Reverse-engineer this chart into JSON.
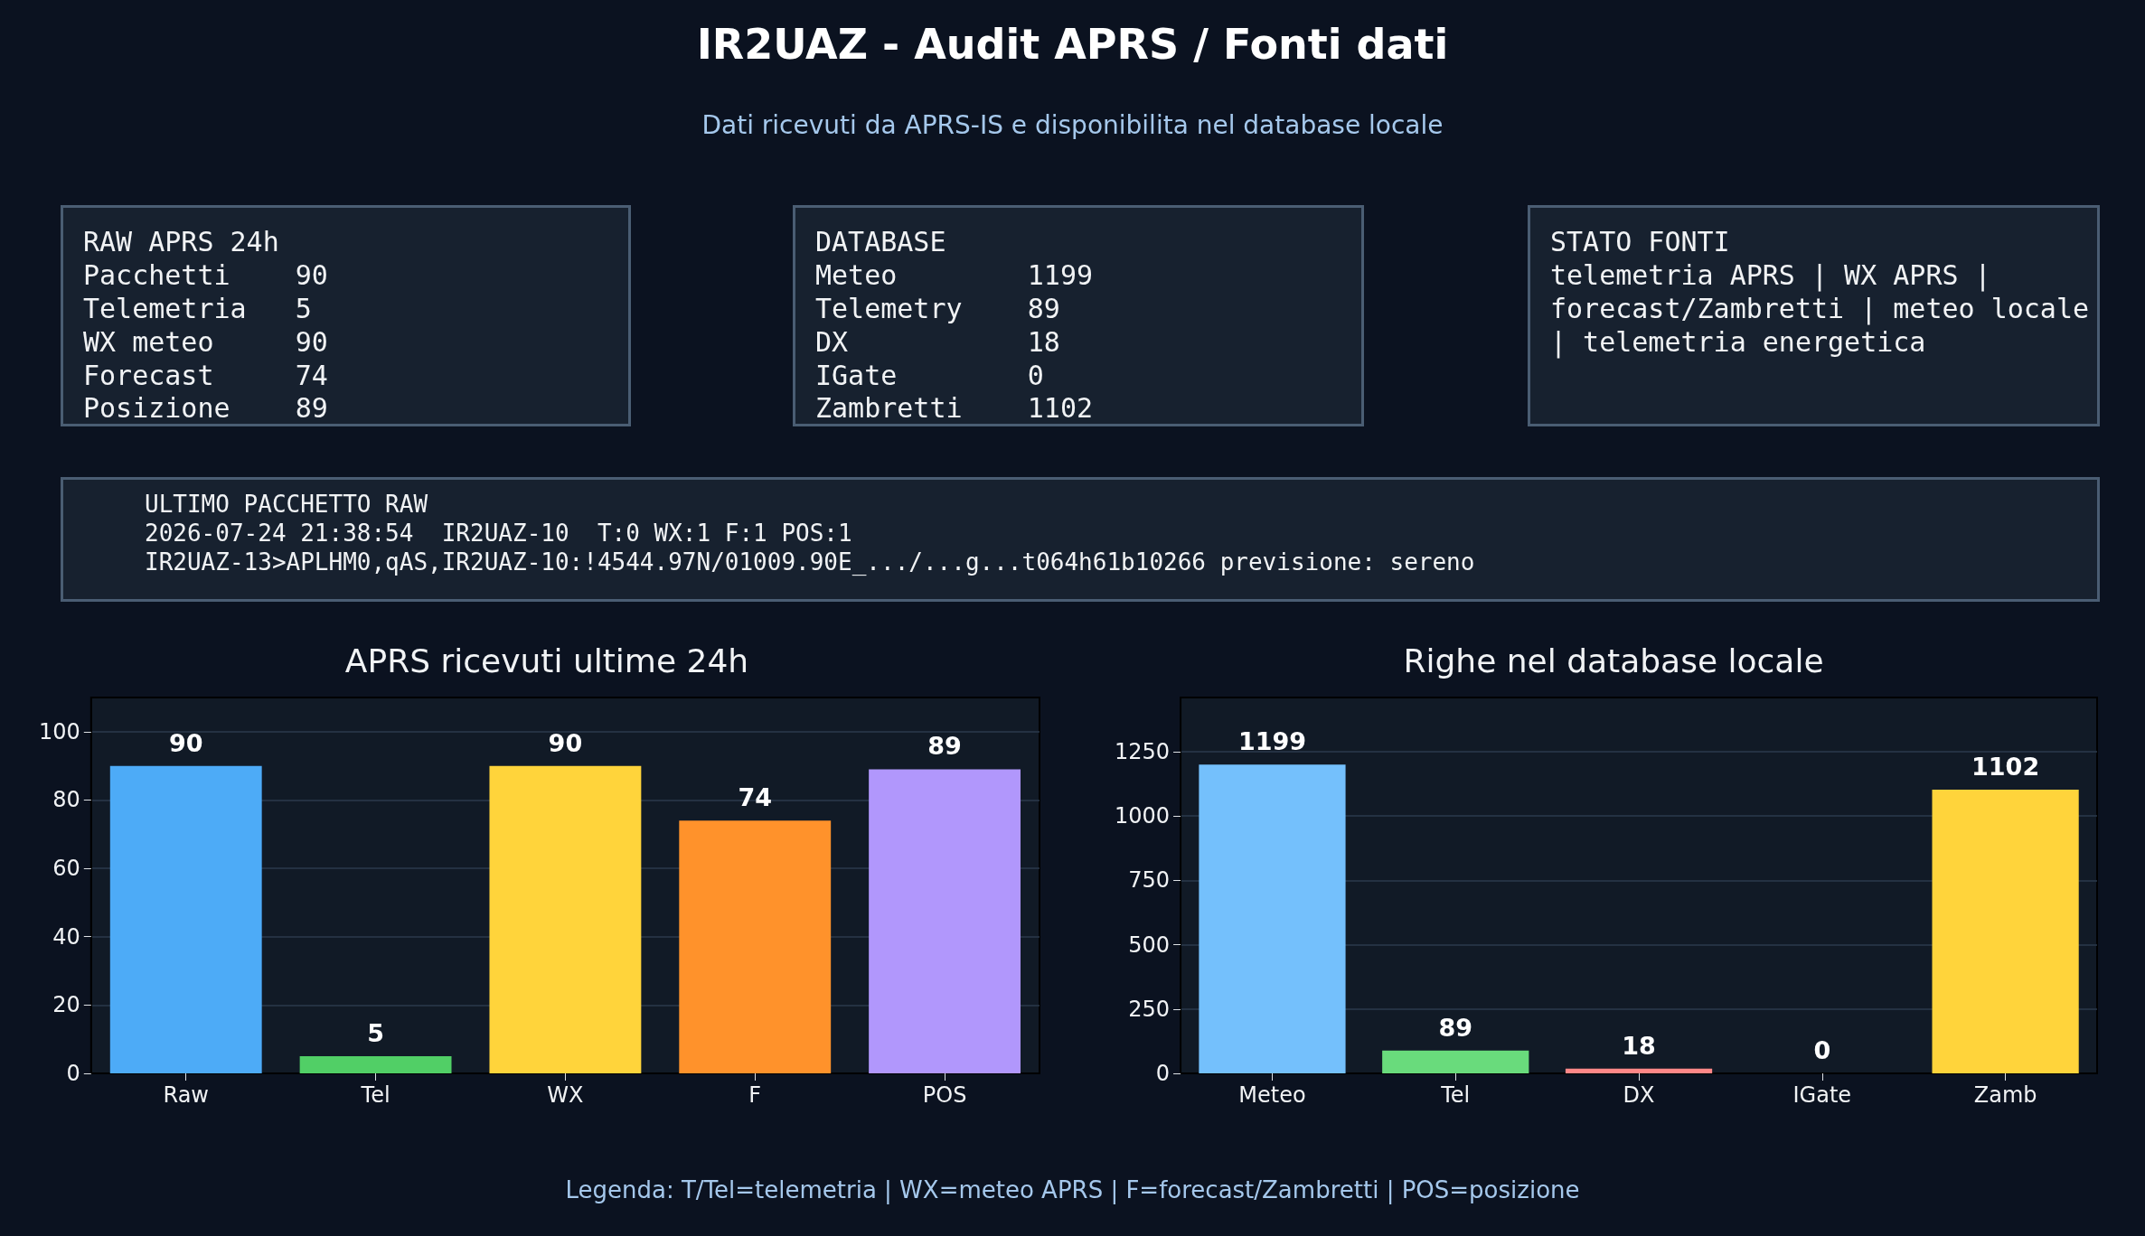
{
  "chart_data": [
    {
      "type": "other",
      "title": "IR2UAZ - Audit APRS / Fonti dati",
      "subtitle": "Dati ricevuti da APRS-IS e disponibilita nel database locale",
      "annotations": [
        "RAW APRS 24h\nPacchetti    90\nTelemetria   5\nWX meteo     90\nForecast     74\nPosizione    89",
        "DATABASE\nMeteo        1199\nTelemetry    89\nDX           18\nIGate        0\nZambretti    1102",
        "STATO FONTI\ntelemetria APRS | WX APRS |\nforecast/Zambretti | meteo locale\n| telemetria energetica",
        "ULTIMO PACCHETTO RAW\n2026-07-24 21:38:54  IR2UAZ-10  T:0 WX:1 F:1 POS:1\nIR2UAZ-13>APLHM0,qAS,IR2UAZ-10:!4544.97N/01009.90E_.../...g...t064h61b10266 previsione: sereno",
        "Legenda: T/Tel=telemetria | WX=meteo APRS | F=forecast/Zambretti | POS=posizione"
      ]
    },
    {
      "type": "bar",
      "title": "APRS ricevuti ultime 24h",
      "categories": [
        "Raw",
        "Tel",
        "WX",
        "F",
        "POS"
      ],
      "values": [
        90,
        5,
        90,
        74,
        89
      ],
      "colors": [
        "#4dabf7",
        "#51cf66",
        "#ffd43b",
        "#ff922b",
        "#b197fc"
      ],
      "ylim": [
        0,
        110
      ],
      "yticks": [
        0,
        20,
        40,
        60,
        80,
        100
      ],
      "grid": "y",
      "data_labels": true
    },
    {
      "type": "bar",
      "title": "Righe nel database locale",
      "categories": [
        "Meteo",
        "Tel",
        "DX",
        "IGate",
        "Zamb"
      ],
      "values": [
        1199,
        89,
        18,
        0,
        1102
      ],
      "colors": [
        "#74c0fc",
        "#69db7c",
        "#ff8787",
        "#adb5bd",
        "#ffd43b"
      ],
      "ylim": [
        0,
        1460
      ],
      "yticks": [
        0,
        250,
        500,
        750,
        1000,
        1250
      ],
      "grid": "y",
      "data_labels": true
    }
  ]
}
